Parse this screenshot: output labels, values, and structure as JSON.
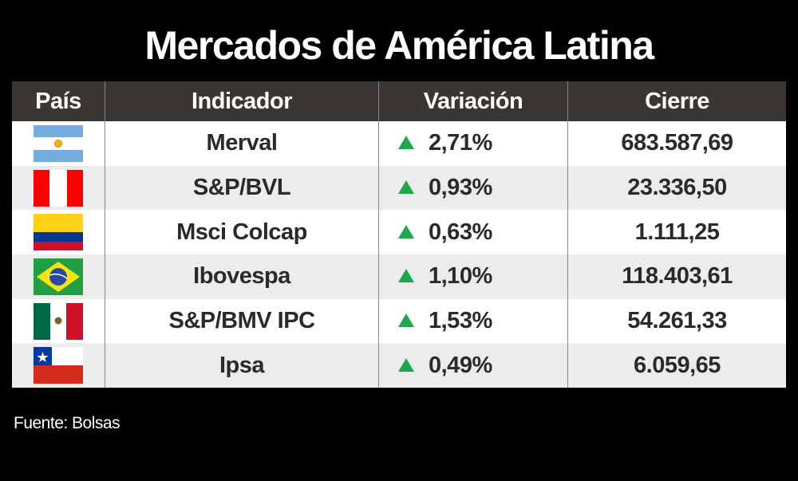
{
  "title": "Mercados de América Latina",
  "source": "Fuente: Bolsas",
  "colors": {
    "header_bg": "#3a3633",
    "up_arrow": "#1ea84a",
    "row_alt": "#ececec"
  },
  "chart_data": {
    "type": "table",
    "title": "Mercados de América Latina",
    "columns": [
      "País",
      "Indicador",
      "Variación",
      "Cierre"
    ],
    "rows": [
      {
        "country": "argentina",
        "indicator": "Merval",
        "change": "2,71%",
        "direction": "up",
        "close": "683.587,69"
      },
      {
        "country": "peru",
        "indicator": "S&P/BVL",
        "change": "0,93%",
        "direction": "up",
        "close": "23.336,50"
      },
      {
        "country": "colombia",
        "indicator": "Msci Colcap",
        "change": "0,63%",
        "direction": "up",
        "close": "1.111,25"
      },
      {
        "country": "brazil",
        "indicator": "Ibovespa",
        "change": "1,10%",
        "direction": "up",
        "close": "118.403,61"
      },
      {
        "country": "mexico",
        "indicator": "S&P/BMV IPC",
        "change": "1,53%",
        "direction": "up",
        "close": "54.261,33"
      },
      {
        "country": "chile",
        "indicator": "Ipsa",
        "change": "0,49%",
        "direction": "up",
        "close": "6.059,65"
      }
    ],
    "source": "Fuente: Bolsas"
  }
}
